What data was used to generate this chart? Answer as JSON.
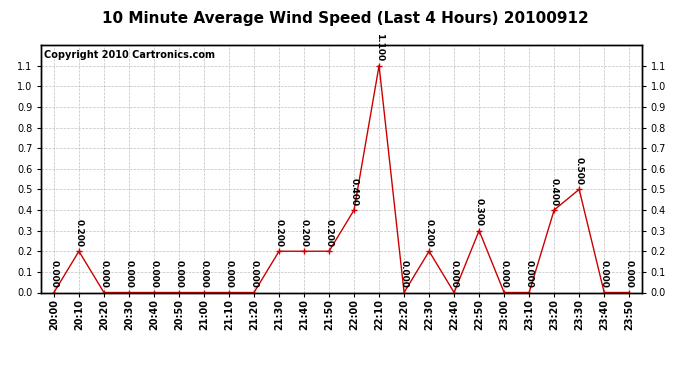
{
  "title": "10 Minute Average Wind Speed (Last 4 Hours) 20100912",
  "copyright": "Copyright 2010 Cartronics.com",
  "line_color": "#cc0000",
  "bg_color": "#ffffff",
  "grid_color": "#c0c0c0",
  "times": [
    "20:00",
    "20:10",
    "20:20",
    "20:30",
    "20:40",
    "20:50",
    "21:00",
    "21:10",
    "21:20",
    "21:30",
    "21:40",
    "21:50",
    "22:00",
    "22:10",
    "22:20",
    "22:30",
    "22:40",
    "22:50",
    "23:00",
    "23:10",
    "23:20",
    "23:30",
    "23:40",
    "23:50"
  ],
  "values": [
    0.0,
    0.2,
    0.0,
    0.0,
    0.0,
    0.0,
    0.0,
    0.0,
    0.0,
    0.2,
    0.2,
    0.2,
    0.4,
    1.1,
    0.0,
    0.2,
    0.0,
    0.3,
    0.0,
    0.0,
    0.4,
    0.5,
    0.0,
    0.0
  ],
  "ylim": [
    0.0,
    1.2
  ],
  "yticks_left": [
    0.0,
    0.1,
    0.2,
    0.3,
    0.4,
    0.5,
    0.6,
    0.7,
    0.8,
    0.9,
    1.0,
    1.1
  ],
  "yticks_right": [
    0.0,
    0.1,
    0.2,
    0.3,
    0.4,
    0.5,
    0.6,
    0.7,
    0.8,
    0.9,
    1.0,
    1.1
  ],
  "marker": "+",
  "marker_color": "#cc0000",
  "marker_size": 4,
  "line_width": 1.0,
  "title_fontsize": 11,
  "tick_fontsize": 7,
  "label_fontsize": 6.5,
  "copyright_fontsize": 7
}
